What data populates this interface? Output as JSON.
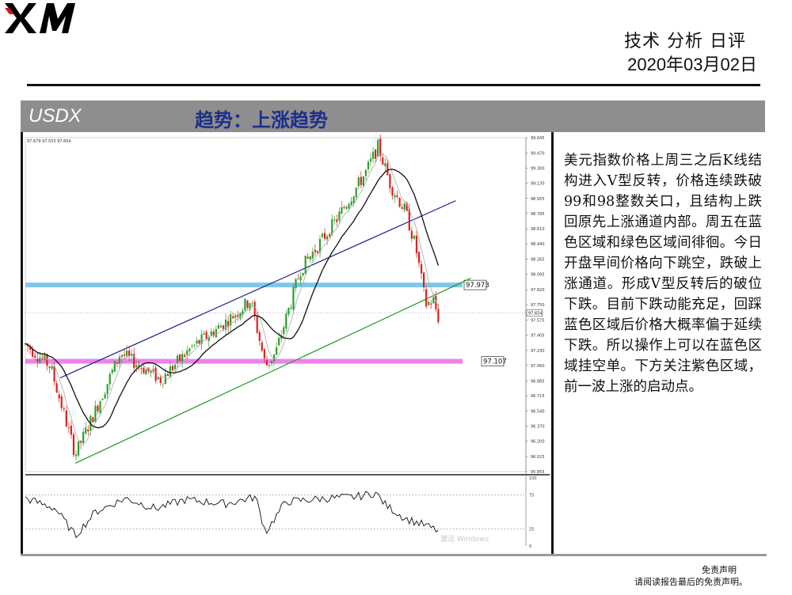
{
  "header": {
    "logo_text": "XM",
    "title": "技术 分析 日评",
    "date": "2020年03月02日"
  },
  "band": {
    "symbol": "USDX",
    "trend": "趋势：上涨趋势"
  },
  "commentary": "美元指数价格上周三之后K线结构进入V型反转，价格连续跌破99和98整数关口，且结构上跌回原先上涨通道内部。周五在蓝色区域和绿色区域间徘徊。今日开盘早间价格向下跳空，跌破上涨通道。形成V型反转后的破位下跌。目前下跌动能充足，回踩蓝色区域后价格大概率偏于延续下跌。所以操作上可以在蓝色区域挂空单。下方关注紫色区域，前一波上涨的启动点。",
  "disclaimer": {
    "title": "免责声明",
    "text": "请阅读报告最后的免责声明。"
  },
  "colors": {
    "band_bg": "#8e8e8e",
    "trend_text": "#1d2f8c",
    "bull_candle": "#2ca02c",
    "bear_candle": "#e0201b",
    "resistance_zone": "#7fc7ea",
    "support_zone": "#ee82ee",
    "channel_upper": "#1f1f8f",
    "channel_lower": "#1f9a1f"
  },
  "chart_data": {
    "type": "candlestick",
    "symbol": "USDX",
    "ohlc_readout": "97.679 97.553 97.654",
    "ylim": [
      95.855,
      99.645
    ],
    "y_ticks": [
      "99.645",
      "99.470",
      "99.300",
      "99.130",
      "98.955",
      "98.785",
      "98.610",
      "98.440",
      "98.265",
      "98.095",
      "97.920",
      "97.750",
      "97.575",
      "97.405",
      "97.230",
      "97.060",
      "96.885",
      "96.715",
      "96.540",
      "96.370",
      "96.200",
      "96.025",
      "95.855"
    ],
    "last_price": "97.654",
    "levels": [
      {
        "value": 97.973,
        "label": "97.973",
        "color": "#7fc7ea"
      },
      {
        "value": 97.107,
        "label": "97.107",
        "color": "#ee82ee"
      }
    ],
    "channel_upper": [
      [
        0.07,
        96.92
      ],
      [
        0.86,
        98.93
      ]
    ],
    "channel_lower": [
      [
        0.1,
        95.95
      ],
      [
        0.89,
        98.05
      ]
    ],
    "price_path": [
      [
        0.0,
        97.3
      ],
      [
        0.05,
        97.05
      ],
      [
        0.1,
        96.05
      ],
      [
        0.14,
        96.55
      ],
      [
        0.19,
        97.2
      ],
      [
        0.27,
        96.9
      ],
      [
        0.33,
        97.25
      ],
      [
        0.4,
        97.55
      ],
      [
        0.45,
        97.8
      ],
      [
        0.48,
        97.05
      ],
      [
        0.5,
        97.2
      ],
      [
        0.55,
        98.15
      ],
      [
        0.62,
        98.7
      ],
      [
        0.68,
        99.25
      ],
      [
        0.705,
        99.55
      ],
      [
        0.73,
        99.1
      ],
      [
        0.76,
        98.8
      ],
      [
        0.78,
        98.4
      ],
      [
        0.8,
        97.75
      ],
      [
        0.815,
        97.8
      ],
      [
        0.825,
        97.6
      ]
    ],
    "oscillator": {
      "y_ticks": [
        "100",
        "75",
        "25",
        "0"
      ],
      "path": [
        [
          0.0,
          70
        ],
        [
          0.06,
          55
        ],
        [
          0.1,
          15
        ],
        [
          0.14,
          50
        ],
        [
          0.2,
          70
        ],
        [
          0.26,
          55
        ],
        [
          0.32,
          68
        ],
        [
          0.4,
          62
        ],
        [
          0.46,
          72
        ],
        [
          0.48,
          20
        ],
        [
          0.52,
          65
        ],
        [
          0.6,
          70
        ],
        [
          0.66,
          72
        ],
        [
          0.7,
          78
        ],
        [
          0.72,
          60
        ],
        [
          0.76,
          40
        ],
        [
          0.8,
          30
        ],
        [
          0.825,
          22
        ]
      ]
    },
    "watermark": "激活 Windows"
  }
}
